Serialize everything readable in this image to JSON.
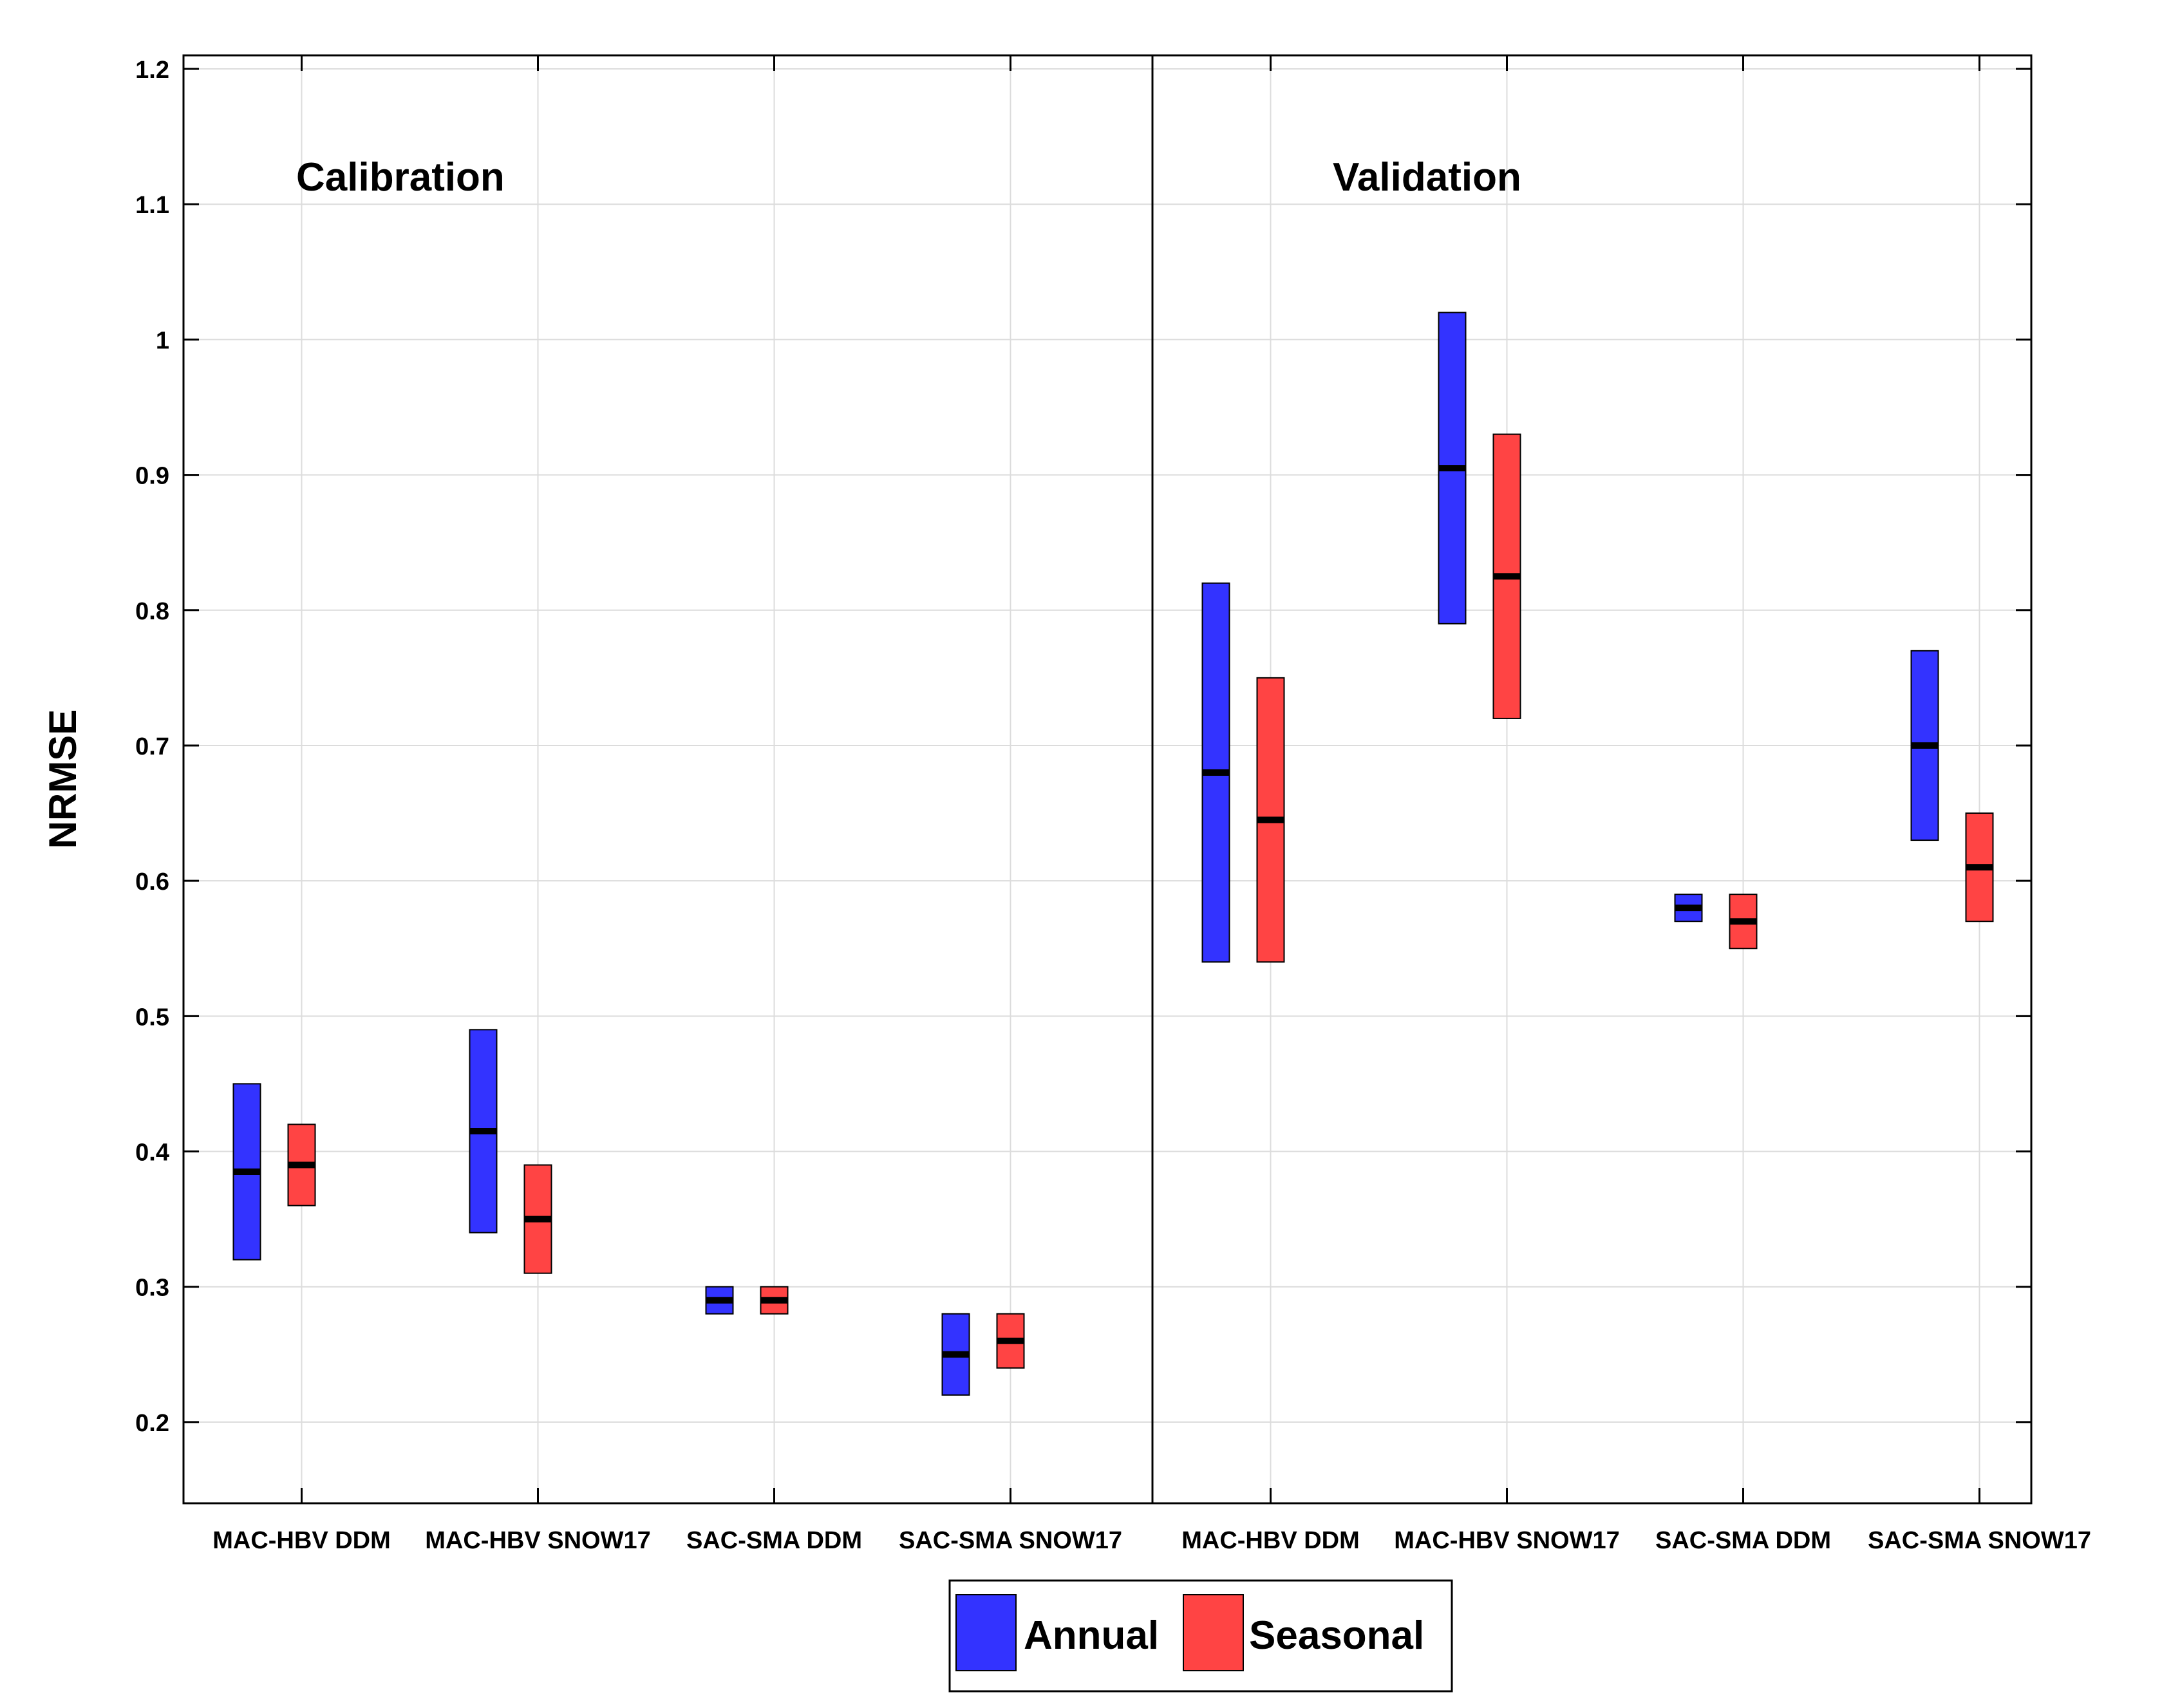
{
  "chart_data": {
    "type": "floating-bar",
    "ylabel": "NRMSE",
    "ylim": [
      0.14,
      1.21
    ],
    "yticks": [
      0.2,
      0.3,
      0.4,
      0.5,
      0.6,
      0.7,
      0.8,
      0.9,
      1,
      1.1,
      1.2
    ],
    "ytick_labels": [
      "0.2",
      "0.3",
      "0.4",
      "0.5",
      "0.6",
      "0.7",
      "0.8",
      "0.9",
      "1",
      "1.1",
      "1.2"
    ],
    "categories": [
      "MAC-HBV DDM",
      "MAC-HBV SNOW17",
      "SAC-SMA DDM",
      "SAC-SMA SNOW17"
    ],
    "legend": [
      {
        "name": "Annual",
        "color": "#3333ff"
      },
      {
        "name": "Seasonal",
        "color": "#ff4444"
      }
    ],
    "panels": [
      {
        "title": "Calibration",
        "series": [
          {
            "name": "Annual",
            "ranges": [
              [
                0.32,
                0.45
              ],
              [
                0.34,
                0.49
              ],
              [
                0.28,
                0.3
              ],
              [
                0.22,
                0.28
              ]
            ],
            "medians": [
              0.385,
              0.415,
              0.29,
              0.25
            ]
          },
          {
            "name": "Seasonal",
            "ranges": [
              [
                0.36,
                0.42
              ],
              [
                0.31,
                0.39
              ],
              [
                0.28,
                0.3
              ],
              [
                0.24,
                0.28
              ]
            ],
            "medians": [
              0.39,
              0.35,
              0.29,
              0.26
            ]
          }
        ]
      },
      {
        "title": "Validation",
        "series": [
          {
            "name": "Annual",
            "ranges": [
              [
                0.54,
                0.82
              ],
              [
                0.79,
                1.02
              ],
              [
                0.57,
                0.59
              ],
              [
                0.63,
                0.77
              ]
            ],
            "medians": [
              0.68,
              0.905,
              0.58,
              0.7
            ]
          },
          {
            "name": "Seasonal",
            "ranges": [
              [
                0.54,
                0.75
              ],
              [
                0.72,
                0.93
              ],
              [
                0.55,
                0.59
              ],
              [
                0.57,
                0.65
              ]
            ],
            "medians": [
              0.645,
              0.825,
              0.57,
              0.61
            ]
          }
        ]
      }
    ]
  }
}
